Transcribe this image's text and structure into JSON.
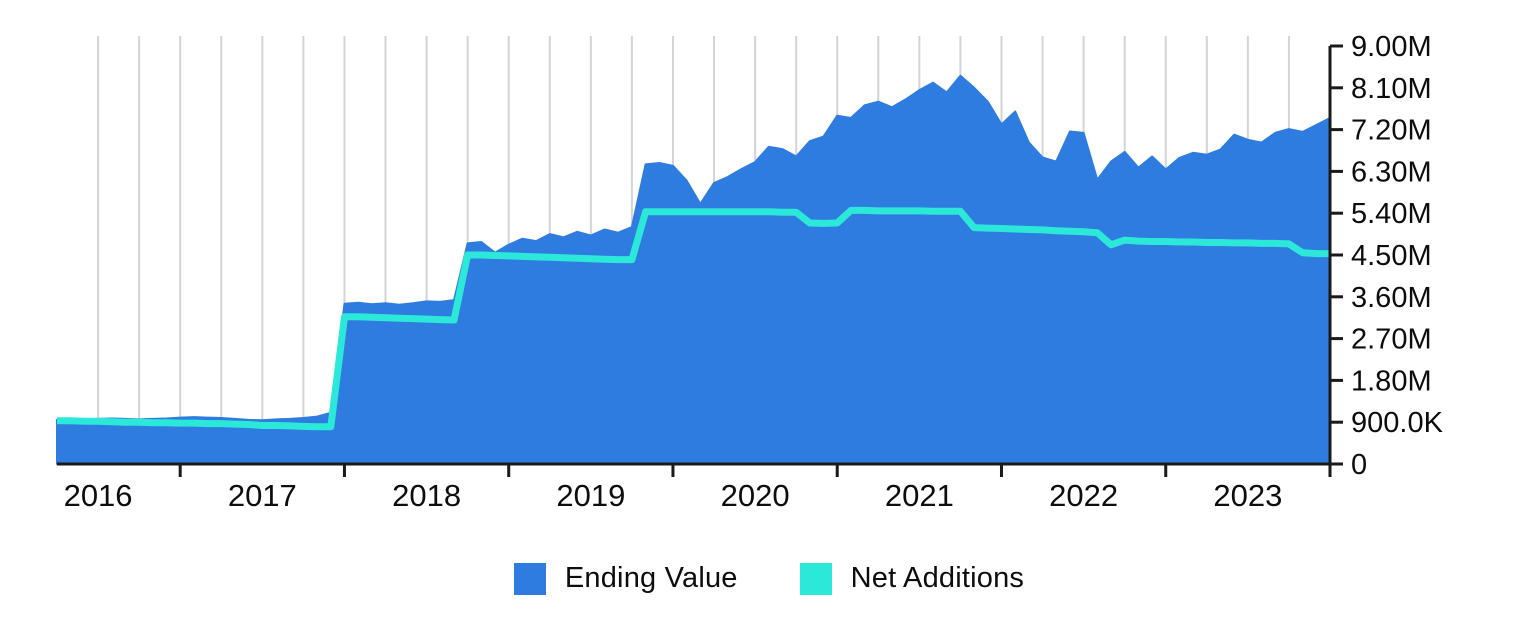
{
  "chart_data": {
    "type": "area",
    "title": "",
    "xlabel": "",
    "ylabel": "",
    "legend_position": "bottom-center",
    "grid": "vertical-quarterly",
    "x_axis": {
      "tick_labels": [
        "2016",
        "2017",
        "2018",
        "2019",
        "2020",
        "2021",
        "2022",
        "2023"
      ],
      "frequency": "monthly",
      "start_month": "2016-04",
      "end_month": "2024-01"
    },
    "y_axis": {
      "range_millions": [
        0,
        9
      ],
      "ticks": [
        {
          "label": "9.00M",
          "value_millions": 9.0
        },
        {
          "label": "8.10M",
          "value_millions": 8.1
        },
        {
          "label": "7.20M",
          "value_millions": 7.2
        },
        {
          "label": "6.30M",
          "value_millions": 6.3
        },
        {
          "label": "5.40M",
          "value_millions": 5.4
        },
        {
          "label": "4.50M",
          "value_millions": 4.5
        },
        {
          "label": "3.60M",
          "value_millions": 3.6
        },
        {
          "label": "2.70M",
          "value_millions": 2.7
        },
        {
          "label": "1.80M",
          "value_millions": 1.8
        },
        {
          "label": "900.0K",
          "value_millions": 0.9
        },
        {
          "label": "0",
          "value_millions": 0.0
        }
      ]
    },
    "months": [
      "2016-04",
      "2016-05",
      "2016-06",
      "2016-07",
      "2016-08",
      "2016-09",
      "2016-10",
      "2016-11",
      "2016-12",
      "2017-01",
      "2017-02",
      "2017-03",
      "2017-04",
      "2017-05",
      "2017-06",
      "2017-07",
      "2017-08",
      "2017-09",
      "2017-10",
      "2017-11",
      "2017-12",
      "2018-01",
      "2018-02",
      "2018-03",
      "2018-04",
      "2018-05",
      "2018-06",
      "2018-07",
      "2018-08",
      "2018-09",
      "2018-10",
      "2018-11",
      "2018-12",
      "2019-01",
      "2019-02",
      "2019-03",
      "2019-04",
      "2019-05",
      "2019-06",
      "2019-07",
      "2019-08",
      "2019-09",
      "2019-10",
      "2019-11",
      "2019-12",
      "2020-01",
      "2020-02",
      "2020-03",
      "2020-04",
      "2020-05",
      "2020-06",
      "2020-07",
      "2020-08",
      "2020-09",
      "2020-10",
      "2020-11",
      "2020-12",
      "2021-01",
      "2021-02",
      "2021-03",
      "2021-04",
      "2021-05",
      "2021-06",
      "2021-07",
      "2021-08",
      "2021-09",
      "2021-10",
      "2021-11",
      "2021-12",
      "2022-01",
      "2022-02",
      "2022-03",
      "2022-04",
      "2022-05",
      "2022-06",
      "2022-07",
      "2022-08",
      "2022-09",
      "2022-10",
      "2022-11",
      "2022-12",
      "2023-01",
      "2023-02",
      "2023-03",
      "2023-04",
      "2023-05",
      "2023-06",
      "2023-07",
      "2023-08",
      "2023-09",
      "2023-10",
      "2023-11",
      "2023-12",
      "2024-01"
    ],
    "series": [
      {
        "name": "Ending Value",
        "style": "area",
        "color": "#2e7cdf",
        "values_millions": [
          0.95,
          0.95,
          0.96,
          0.97,
          0.98,
          0.97,
          0.96,
          0.97,
          0.98,
          1.0,
          1.01,
          1.0,
          0.99,
          0.97,
          0.95,
          0.94,
          0.96,
          0.97,
          0.99,
          1.02,
          1.1,
          3.45,
          3.47,
          3.44,
          3.46,
          3.43,
          3.46,
          3.5,
          3.49,
          3.53,
          4.75,
          4.78,
          4.55,
          4.72,
          4.85,
          4.8,
          4.95,
          4.88,
          5.0,
          4.92,
          5.05,
          4.98,
          5.1,
          6.45,
          6.48,
          6.42,
          6.1,
          5.6,
          6.05,
          6.18,
          6.35,
          6.5,
          6.83,
          6.78,
          6.62,
          6.95,
          7.05,
          7.5,
          7.45,
          7.72,
          7.8,
          7.68,
          7.85,
          8.05,
          8.21,
          8.0,
          8.36,
          8.1,
          7.8,
          7.31,
          7.59,
          6.92,
          6.6,
          6.51,
          7.16,
          7.13,
          6.12,
          6.51,
          6.72,
          6.38,
          6.62,
          6.34,
          6.59,
          6.7,
          6.66,
          6.77,
          7.09,
          6.98,
          6.92,
          7.13,
          7.21,
          7.15,
          7.3,
          7.45
        ]
      },
      {
        "name": "Net Additions",
        "style": "line",
        "color": "#2be8d9",
        "values_millions": [
          0.93,
          0.93,
          0.92,
          0.92,
          0.91,
          0.9,
          0.9,
          0.89,
          0.89,
          0.88,
          0.88,
          0.87,
          0.87,
          0.86,
          0.85,
          0.83,
          0.83,
          0.82,
          0.81,
          0.8,
          0.8,
          3.17,
          3.17,
          3.16,
          3.15,
          3.14,
          3.13,
          3.12,
          3.11,
          3.1,
          4.5,
          4.5,
          4.49,
          4.48,
          4.47,
          4.46,
          4.45,
          4.44,
          4.43,
          4.42,
          4.41,
          4.4,
          4.4,
          5.43,
          5.43,
          5.43,
          5.43,
          5.43,
          5.43,
          5.43,
          5.43,
          5.43,
          5.43,
          5.42,
          5.42,
          5.19,
          5.18,
          5.19,
          5.46,
          5.46,
          5.45,
          5.45,
          5.45,
          5.45,
          5.44,
          5.44,
          5.44,
          5.09,
          5.08,
          5.07,
          5.06,
          5.05,
          5.04,
          5.02,
          5.01,
          5.0,
          4.98,
          4.72,
          4.82,
          4.8,
          4.79,
          4.79,
          4.78,
          4.78,
          4.77,
          4.77,
          4.76,
          4.76,
          4.75,
          4.75,
          4.74,
          4.55,
          4.53,
          4.53
        ]
      }
    ]
  },
  "legend": {
    "items": [
      {
        "label": "Ending Value",
        "color": "#2e7cdf"
      },
      {
        "label": "Net Additions",
        "color": "#2be8d9"
      }
    ]
  },
  "colors": {
    "background": "#ffffff",
    "gridline": "#d4d4d4",
    "axis": "#1a1a1a",
    "tick_text": "#0d0d0d",
    "ending_value": "#2e7cdf",
    "net_additions": "#2be8d9"
  }
}
